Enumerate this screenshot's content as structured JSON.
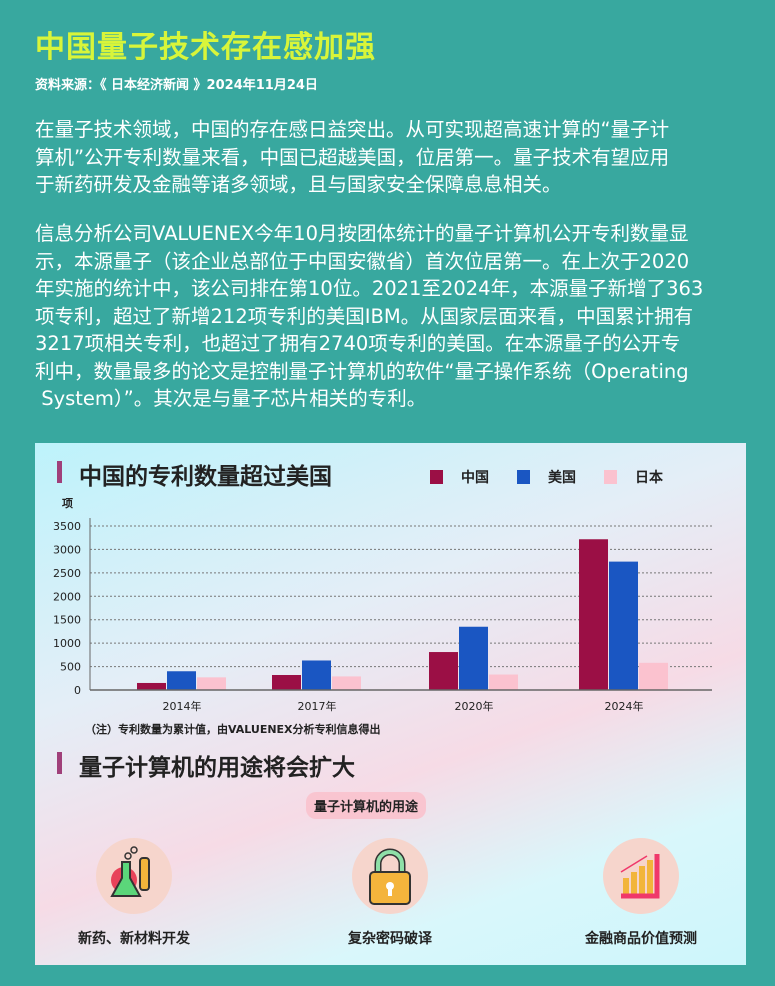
{
  "title": "中国量子技术存在感加强",
  "source": "资料来源：《 日本经济新闻 》2024年11月24日",
  "paragraphs": [
    [
      "在量子技术领域，中国的存在感日益突出。从可实现超高速计算的“量子计",
      "算机”公开专利数量来看，中国已超越美国，位居第一。量子技术有望应用",
      "于新药研发及金融等诸多领域，且与国家安全保障息息相关。"
    ],
    [
      "信息分析公司VALUENEX今年10月按团体统计的量子计算机公开专利数量显",
      "示，本源量子（该企业总部位于中国安徽省）首次位居第一。在上次于2020",
      "年实施的统计中，该公司排在第10位。2021至2024年，本源量子新增了363",
      "项专利，超过了新增212项专利的美国IBM。从国家层面来看，中国累计拥有",
      "3217项相关专利，也超过了拥有2740项专利的美国。在本源量子的公开专",
      "利中，数量最多的论文是控制量子计算机的软件“量子操作系统（Operating",
      " System）”。其次是与量子芯片相关的专利。"
    ]
  ],
  "chart_data": {
    "type": "bar",
    "title": "中国的专利数量超过美国",
    "ylabel": "项",
    "categories": [
      "2014年",
      "2017年",
      "2020年",
      "2024年"
    ],
    "ylim": [
      0,
      3500
    ],
    "yticks": [
      0,
      500,
      1000,
      1500,
      2000,
      2500,
      3000,
      3500
    ],
    "grid": true,
    "legend_position": "top-right",
    "series": [
      {
        "name": "中国",
        "color": "#9b0f45",
        "values": [
          150,
          320,
          810,
          3217
        ]
      },
      {
        "name": "美国",
        "color": "#1a56c2",
        "values": [
          400,
          630,
          1350,
          2740
        ]
      },
      {
        "name": "日本",
        "color": "#fbc2cf",
        "values": [
          270,
          290,
          330,
          580
        ]
      }
    ],
    "note": "（注）专利数量为累计值，由VALUENEX分析专利信息得出"
  },
  "uses": {
    "title": "量子计算机的用途将会扩大",
    "pill": "量子计算机的用途",
    "items": [
      {
        "label": "新药、新材料开发",
        "icon": "lab-flask-icon"
      },
      {
        "label": "复杂密码破译",
        "icon": "padlock-icon"
      },
      {
        "label": "金融商品价值预测",
        "icon": "rising-chart-icon"
      }
    ]
  }
}
